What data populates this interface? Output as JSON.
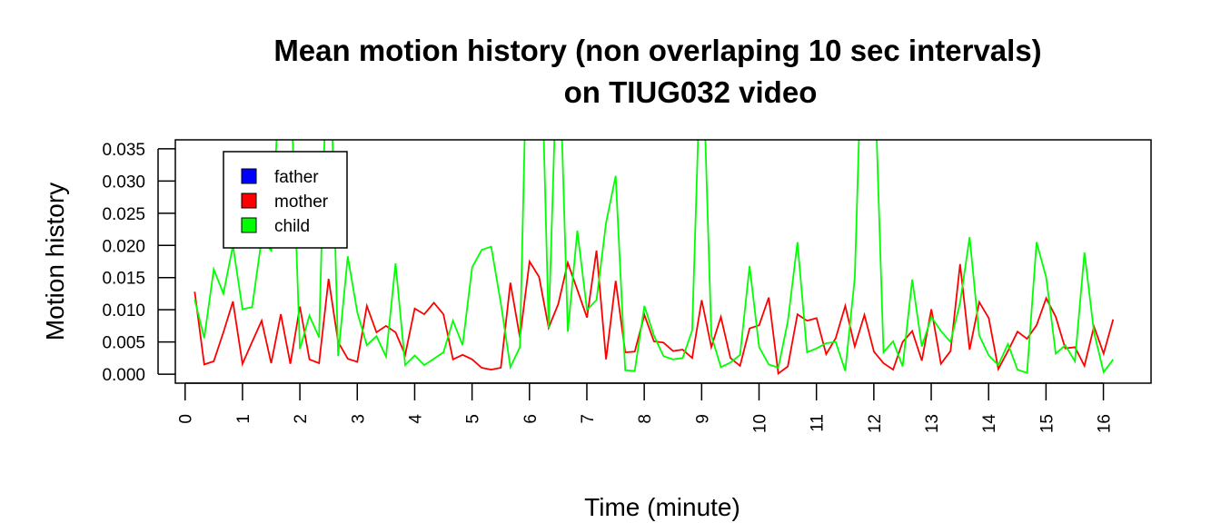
{
  "chart_data": {
    "type": "line",
    "title_line1": "Mean motion history (non overlaping 10 sec intervals)",
    "title_line2": "on TIUG032 video",
    "xlabel": "Time (minute)",
    "ylabel": "Motion history",
    "xlim": [
      -0.17,
      16.83
    ],
    "ylim": [
      -0.0014,
      0.0364
    ],
    "x_ticks": [
      0,
      1,
      2,
      3,
      4,
      5,
      6,
      7,
      8,
      9,
      10,
      11,
      12,
      13,
      14,
      15,
      16
    ],
    "x_tick_labels": [
      "0",
      "1",
      "2",
      "3",
      "4",
      "5",
      "6",
      "7",
      "8",
      "9",
      "10",
      "11",
      "12",
      "13",
      "14",
      "15",
      "16"
    ],
    "y_ticks": [
      0,
      0.005,
      0.01,
      0.015,
      0.02,
      0.025,
      0.03,
      0.035
    ],
    "y_tick_labels": [
      "0.000",
      "0.005",
      "0.010",
      "0.015",
      "0.020",
      "0.025",
      "0.030",
      "0.035"
    ],
    "grid": false,
    "legend_position": "top-left",
    "legend": [
      {
        "name": "father",
        "color": "#0000ff"
      },
      {
        "name": "mother",
        "color": "#ff0000"
      },
      {
        "name": "child",
        "color": "#00ff00"
      }
    ],
    "x_start": 0.1667,
    "x_step": 0.1667,
    "series": [
      {
        "name": "mother",
        "color": "#ff0000",
        "values": [
          0.0128,
          0.0015,
          0.002,
          0.0065,
          0.0113,
          0.0016,
          0.005,
          0.0083,
          0.0017,
          0.0093,
          0.0016,
          0.0105,
          0.0023,
          0.0017,
          0.0148,
          0.005,
          0.0024,
          0.0019,
          0.0106,
          0.0065,
          0.0075,
          0.0065,
          0.003,
          0.0102,
          0.0093,
          0.0111,
          0.0093,
          0.0023,
          0.003,
          0.0023,
          0.001,
          0.0007,
          0.001,
          0.0142,
          0.0057,
          0.0175,
          0.0151,
          0.0072,
          0.0109,
          0.0173,
          0.0131,
          0.0088,
          0.0192,
          0.0023,
          0.0145,
          0.0034,
          0.0035,
          0.0092,
          0.0051,
          0.0049,
          0.0036,
          0.0038,
          0.0025,
          0.0115,
          0.0042,
          0.0089,
          0.0025,
          0.0013,
          0.0071,
          0.0076,
          0.0119,
          0.0001,
          0.0012,
          0.0093,
          0.0083,
          0.0087,
          0.0031,
          0.0056,
          0.0106,
          0.0043,
          0.0092,
          0.0035,
          0.0017,
          0.0007,
          0.005,
          0.0067,
          0.0021,
          0.0101,
          0.0016,
          0.0036,
          0.0171,
          0.0038,
          0.0112,
          0.0087,
          0.0008,
          0.0036,
          0.0066,
          0.0055,
          0.0076,
          0.0118,
          0.0089,
          0.004,
          0.0042,
          0.0013,
          0.0074,
          0.0032,
          0.0085
        ]
      },
      {
        "name": "child",
        "color": "#00ff00",
        "values": [
          0.0116,
          0.0056,
          0.0163,
          0.0125,
          0.02,
          0.0101,
          0.0104,
          0.021,
          0.0192,
          0.05,
          0.047,
          0.0039,
          0.0091,
          0.0057,
          0.06,
          0.0028,
          0.0183,
          0.0096,
          0.0045,
          0.0059,
          0.0027,
          0.0172,
          0.0014,
          0.0029,
          0.0014,
          0.0024,
          0.0034,
          0.0083,
          0.0045,
          0.0166,
          0.0193,
          0.0198,
          0.011,
          0.0011,
          0.0042,
          0.07,
          0.065,
          0.0072,
          0.056,
          0.0066,
          0.0223,
          0.01,
          0.0115,
          0.0235,
          0.0308,
          0.0006,
          0.0005,
          0.0106,
          0.006,
          0.0028,
          0.0023,
          0.0025,
          0.0068,
          0.055,
          0.006,
          0.0011,
          0.0018,
          0.003,
          0.0168,
          0.0042,
          0.0015,
          0.001,
          0.0082,
          0.0205,
          0.0034,
          0.004,
          0.0048,
          0.005,
          0.0005,
          0.015,
          0.065,
          0.05,
          0.0034,
          0.0051,
          0.0012,
          0.0147,
          0.0043,
          0.0089,
          0.0067,
          0.005,
          0.0111,
          0.0213,
          0.006,
          0.0029,
          0.0014,
          0.0047,
          0.0007,
          0.0002,
          0.0205,
          0.015,
          0.0032,
          0.0045,
          0.002,
          0.0189,
          0.0065,
          0.0003,
          0.0023
        ]
      }
    ]
  }
}
